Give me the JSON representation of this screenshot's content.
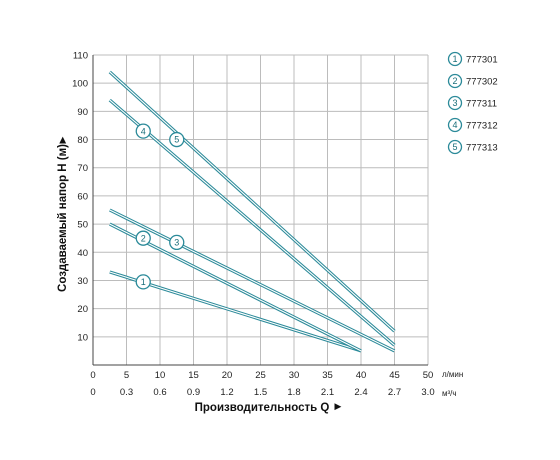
{
  "chart_data": {
    "type": "line",
    "ylabel": "Создаваемый напор H (м)",
    "ylabel_arrow": "►",
    "xlabel": "Производительность Q",
    "xlabel_arrow": "►",
    "x_unit_primary": "л/мин",
    "x_unit_secondary": "м³/ч",
    "xlim": [
      0,
      50
    ],
    "ylim": [
      0,
      110
    ],
    "x_ticks": [
      "0",
      "5",
      "10",
      "15",
      "20",
      "25",
      "30",
      "35",
      "40",
      "45",
      "50"
    ],
    "x_ticks_secondary": [
      "0",
      "0.3",
      "0.6",
      "0.9",
      "1.2",
      "1.5",
      "1.8",
      "2.1",
      "2.4",
      "2.7",
      "3.0"
    ],
    "y_ticks": [
      "10",
      "20",
      "30",
      "40",
      "50",
      "60",
      "70",
      "80",
      "90",
      "100",
      "110"
    ],
    "grid": true,
    "legend_position": "top-right",
    "line_color": "#2b8a99",
    "series": [
      {
        "marker": "1",
        "name": "777301",
        "x": [
          2.5,
          40
        ],
        "y": [
          33,
          5
        ],
        "marker_at": [
          7.5,
          29.5
        ]
      },
      {
        "marker": "2",
        "name": "777302",
        "x": [
          2.5,
          40
        ],
        "y": [
          50,
          5
        ],
        "marker_at": [
          7.5,
          45
        ]
      },
      {
        "marker": "3",
        "name": "777311",
        "x": [
          2.5,
          45
        ],
        "y": [
          55,
          5
        ],
        "marker_at": [
          12.5,
          43.5
        ]
      },
      {
        "marker": "4",
        "name": "777312",
        "x": [
          2.5,
          45
        ],
        "y": [
          94,
          7
        ],
        "marker_at": [
          7.5,
          83
        ]
      },
      {
        "marker": "5",
        "name": "777313",
        "x": [
          2.5,
          45
        ],
        "y": [
          104,
          12
        ],
        "marker_at": [
          12.5,
          80
        ]
      }
    ]
  }
}
